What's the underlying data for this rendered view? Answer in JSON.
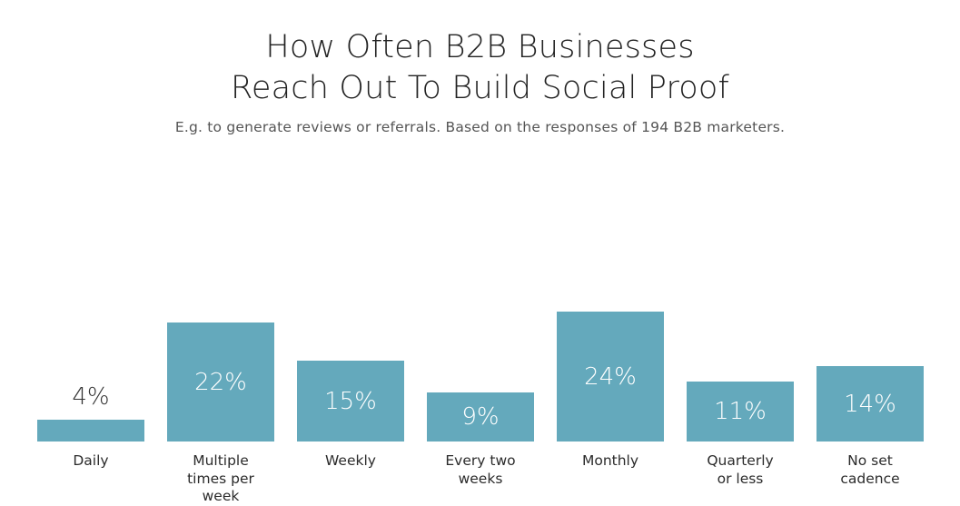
{
  "title_lines": [
    "How Often B2B Businesses",
    "Reach Out To Build Social Proof"
  ],
  "subtitle": "E.g. to generate reviews or referrals. Based on the responses of 194 B2B marketers.",
  "colors": {
    "bar": "#64a9bc",
    "label_inside": "#ffffff",
    "label_outside": "#333333"
  },
  "chart_data": {
    "type": "bar",
    "title": "How Often B2B Businesses Reach Out To Build Social Proof",
    "subtitle": "E.g. to generate reviews or referrals. Based on the responses of 194 B2B marketers.",
    "categories": [
      "Daily",
      "Multiple times per week",
      "Weekly",
      "Every two weeks",
      "Monthly",
      "Quarterly or less",
      "No set cadence"
    ],
    "values": [
      4,
      22,
      15,
      9,
      24,
      11,
      14
    ],
    "value_labels": [
      "4%",
      "22%",
      "15%",
      "9%",
      "24%",
      "11%",
      "14%"
    ],
    "unit": "%",
    "ylim": [
      0,
      24
    ],
    "grid": false,
    "legend": "none"
  }
}
